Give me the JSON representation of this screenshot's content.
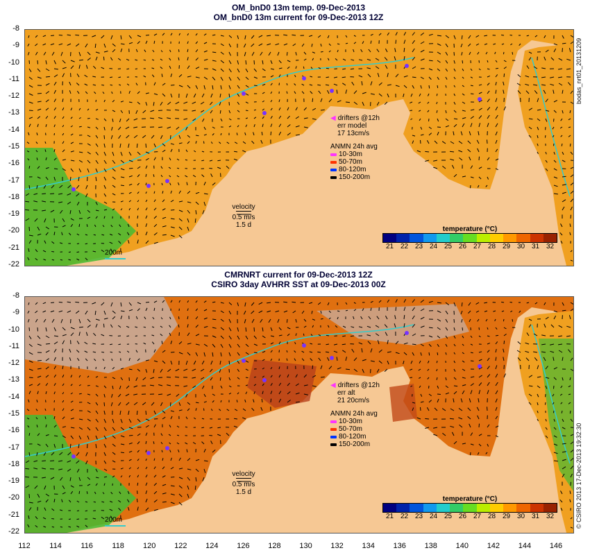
{
  "top_panel": {
    "title_line1": "OM_bnD0 13m temp. 09-Dec-2013",
    "title_line2": "OM_bnD0 13m current for 09-Dec-2013 12Z",
    "side_label": "bodas_nrt01_20131209",
    "legend": {
      "drifters": "drifters @12h",
      "err_label": "err model",
      "err_values": "17 13cm/s",
      "anmn_title": "ANMN 24h avg",
      "depths": [
        {
          "label": "10-30m",
          "color": "#ff33ff"
        },
        {
          "label": "50-70m",
          "color": "#ff3300"
        },
        {
          "label": "80-120m",
          "color": "#0033ff"
        },
        {
          "label": "150-200m",
          "color": "#000000"
        }
      ]
    },
    "velocity": {
      "label": "velocity",
      "speed": "0.5 m/s",
      "duration": "1.5 d"
    },
    "scale_label": "200m",
    "colorbar": {
      "title": "temperature (°C)",
      "labels": [
        "21",
        "22",
        "23",
        "24",
        "25",
        "26",
        "27",
        "28",
        "29",
        "30",
        "31",
        "32"
      ],
      "colors": [
        "#000080",
        "#0022aa",
        "#0055dd",
        "#1199ee",
        "#22cccc",
        "#33cc66",
        "#66dd22",
        "#bbee00",
        "#ffcc00",
        "#ff9900",
        "#ee6600",
        "#cc3300",
        "#992200"
      ]
    }
  },
  "bottom_panel": {
    "title_line1": "CMRNRT current for 09-Dec-2013 12Z",
    "title_line2": "CSIRO 3day AVHRR SST at 09-Dec-2013 00Z",
    "side_label": "© CSIRO 2013  17-Dec-2013 19:32:30",
    "legend": {
      "drifters": "drifters @12h",
      "err_label": "err alt",
      "err_values": "21 20cm/s",
      "anmn_title": "ANMN 24h avg",
      "depths": [
        {
          "label": "10-30m",
          "color": "#ff33ff"
        },
        {
          "label": "50-70m",
          "color": "#ff3300"
        },
        {
          "label": "80-120m",
          "color": "#0033ff"
        },
        {
          "label": "150-200m",
          "color": "#000000"
        }
      ]
    },
    "velocity": {
      "label": "velocity",
      "speed": "0.5 m/s",
      "duration": "1.5 d"
    },
    "scale_label": "200m",
    "colorbar": {
      "title": "temperature (°C)",
      "labels": [
        "21",
        "22",
        "23",
        "24",
        "25",
        "26",
        "27",
        "28",
        "29",
        "30",
        "31",
        "32"
      ],
      "colors": [
        "#000080",
        "#0022aa",
        "#0055dd",
        "#1199ee",
        "#22cccc",
        "#33cc66",
        "#66dd22",
        "#bbee00",
        "#ffcc00",
        "#ff9900",
        "#ee6600",
        "#cc3300",
        "#992200"
      ]
    }
  },
  "lat_ticks": [
    "-8",
    "-9",
    "-10",
    "-11",
    "-12",
    "-13",
    "-14",
    "-15",
    "-16",
    "-17",
    "-18",
    "-19",
    "-20",
    "-21",
    "-22"
  ],
  "lon_ticks": [
    "112",
    "114",
    "116",
    "118",
    "120",
    "122",
    "124",
    "126",
    "128",
    "130",
    "132",
    "134",
    "136",
    "138",
    "140",
    "142",
    "144",
    "146"
  ],
  "colors": {
    "land": "#f6c894",
    "ocean_warm": "#f0a020",
    "ocean_hot": "#e07010",
    "ocean_cool": "#44bb33",
    "cloud": "#c8aa99",
    "isobath": "#33cccc"
  }
}
